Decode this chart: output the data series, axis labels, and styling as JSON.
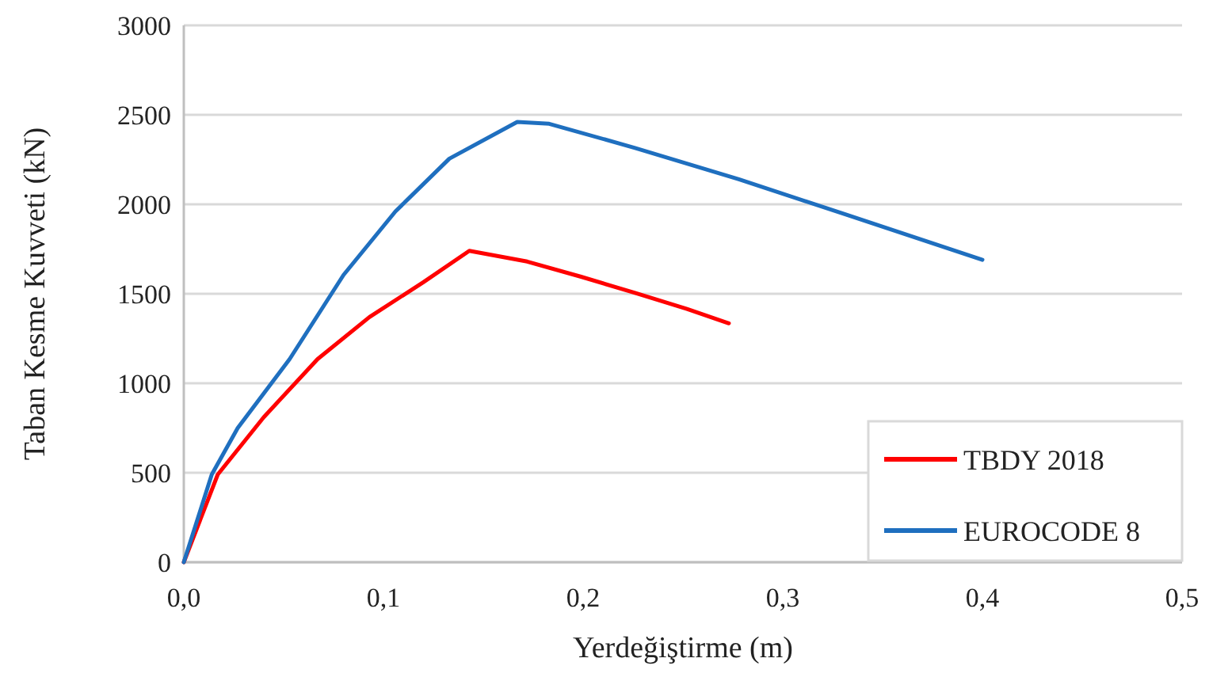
{
  "chart_data": {
    "type": "line",
    "xlabel": "Yerdeğiştirme (m)",
    "ylabel": "Taban Kesme Kuvveti (kN)",
    "xlim": [
      0,
      0.5
    ],
    "ylim": [
      0,
      3000
    ],
    "xticks": [
      {
        "value": 0,
        "label": "0,0"
      },
      {
        "value": 0.1,
        "label": "0,1"
      },
      {
        "value": 0.2,
        "label": "0,2"
      },
      {
        "value": 0.3,
        "label": "0,3"
      },
      {
        "value": 0.4,
        "label": "0,4"
      },
      {
        "value": 0.5,
        "label": "0,5"
      }
    ],
    "yticks": [
      0,
      500,
      1000,
      1500,
      2000,
      2500,
      3000
    ],
    "grid": "y",
    "legend": "bottom right",
    "marker": "none",
    "line_style": "solid",
    "series": [
      {
        "name": "TBDY 2018",
        "color": "#ff0000",
        "x": [
          0,
          0.017,
          0.04,
          0.067,
          0.093,
          0.12,
          0.143,
          0.172,
          0.199,
          0.226,
          0.252,
          0.273
        ],
        "values": [
          0,
          490,
          810,
          1135,
          1370,
          1565,
          1740,
          1680,
          1595,
          1505,
          1415,
          1335
        ]
      },
      {
        "name": "EUROCODE 8",
        "color": "#1f6fbf",
        "x": [
          0,
          0.014,
          0.027,
          0.053,
          0.08,
          0.106,
          0.133,
          0.167,
          0.183,
          0.226,
          0.278,
          0.331,
          0.4
        ],
        "values": [
          0,
          490,
          750,
          1135,
          1605,
          1960,
          2255,
          2460,
          2450,
          2315,
          2140,
          1945,
          1690
        ]
      }
    ]
  }
}
